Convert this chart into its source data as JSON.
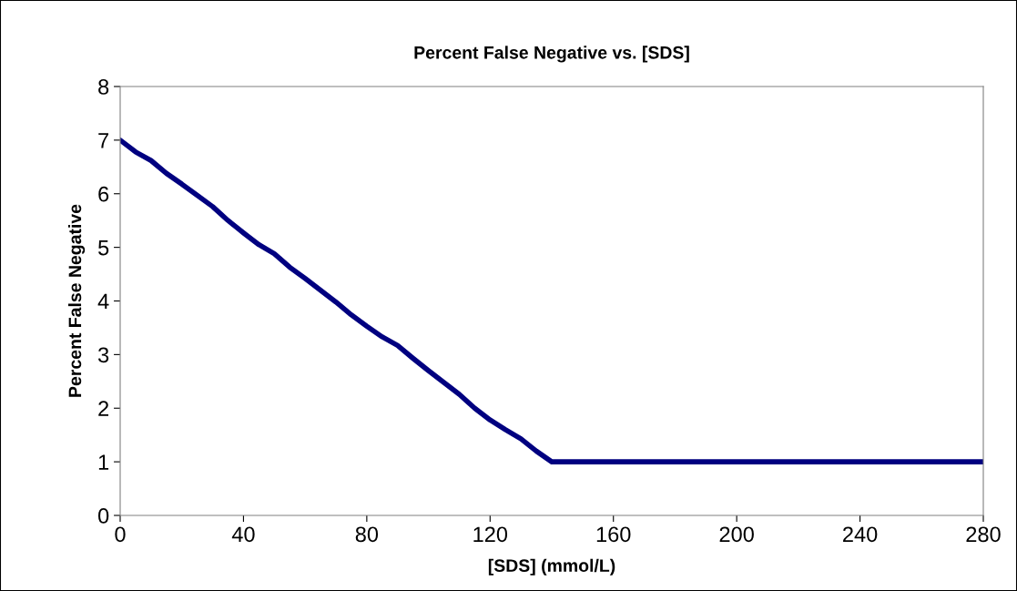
{
  "chart_data": {
    "type": "line",
    "title": "Percent False Negative vs. [SDS]",
    "xlabel": "[SDS] (mmol/L)",
    "ylabel": "Percent False Negative",
    "x": [
      0,
      5,
      10,
      15,
      20,
      25,
      30,
      35,
      40,
      45,
      50,
      55,
      60,
      65,
      70,
      75,
      80,
      85,
      90,
      95,
      100,
      105,
      110,
      115,
      120,
      125,
      130,
      135,
      140,
      280
    ],
    "series": [
      {
        "color": "#000080",
        "values": [
          7,
          6.78,
          6.62,
          6.38,
          6.18,
          5.97,
          5.76,
          5.5,
          5.27,
          5.05,
          4.88,
          4.63,
          4.42,
          4.2,
          3.98,
          3.74,
          3.53,
          3.33,
          3.17,
          2.93,
          2.7,
          2.48,
          2.26,
          2.0,
          1.78,
          1.6,
          1.43,
          1.2,
          1.0,
          1.0
        ]
      }
    ],
    "xlim": [
      0,
      280
    ],
    "xticks": [
      0,
      40,
      80,
      120,
      160,
      200,
      240,
      280
    ],
    "ylim": [
      0,
      8
    ],
    "yticks": [
      0,
      1,
      2,
      3,
      4,
      5,
      6,
      7,
      8
    ],
    "grid": false,
    "legend": false,
    "marker": "none",
    "line_style": "solid"
  }
}
